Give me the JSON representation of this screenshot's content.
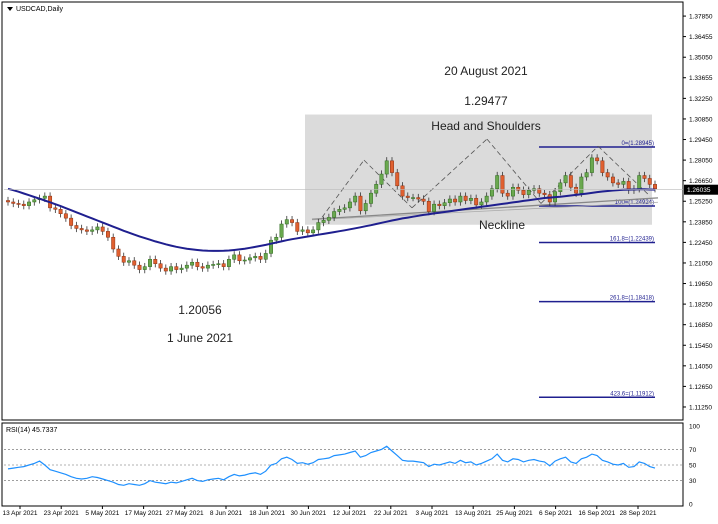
{
  "window": {
    "symbol_label": "USDCAD,Daily",
    "menu_icon": "triangle-down-icon"
  },
  "colors": {
    "background": "#ffffff",
    "frame": "#000000",
    "grid": "#c8c8c8",
    "candle_up": "#6aa84f",
    "candle_up_dark": "#2e6b1e",
    "candle_down": "#e06030",
    "wick": "#333333",
    "ma_line": "#1f1f8f",
    "neckline": "#888888",
    "pattern_box": "#d9d9d9",
    "dashed_pattern": "#555555",
    "fib_line": "#1f1f8f",
    "fib_text": "#1f1f8f",
    "rsi_line": "#1e90ff",
    "current_price_box": "#000000",
    "current_price_text": "#ffffff"
  },
  "annotations": {
    "high_date": "20 August 2021",
    "high_price": "1.29477",
    "pattern_label": "Head and Shoulders",
    "neckline_label": "Neckline",
    "low_price": "1.20056",
    "low_date": "1 June 2021"
  },
  "fib_levels": [
    {
      "label": "0=(1.28945)",
      "value": 1.28945
    },
    {
      "label": "100=(1.24924)",
      "value": 1.24924
    },
    {
      "label": "161.8=(1.22439)",
      "value": 1.22439
    },
    {
      "label": "261.8=(1.18418)",
      "value": 1.18418
    },
    {
      "label": "423.6=(1.11912)",
      "value": 1.11912
    }
  ],
  "current_price": "1.26035",
  "chart_data": [
    {
      "type": "candlestick",
      "title": "USDCAD,Daily",
      "x_tick_labels": [
        "13 Apr 2021",
        "23 Apr 2021",
        "5 May 2021",
        "17 May 2021",
        "27 May 2021",
        "8 Jun 2021",
        "18 Jun 2021",
        "30 Jun 2021",
        "12 Jul 2021",
        "22 Jul 2021",
        "3 Aug 2021",
        "13 Aug 2021",
        "25 Aug 2021",
        "6 Sep 2021",
        "16 Sep 2021",
        "28 Sep 2021"
      ],
      "y_tick_labels": [
        "1.37850",
        "1.36455",
        "1.35050",
        "1.33655",
        "1.32250",
        "1.30850",
        "1.29450",
        "1.28050",
        "1.26650",
        "1.25250",
        "1.23850",
        "1.22450",
        "1.21050",
        "1.19650",
        "1.18250",
        "1.16850",
        "1.15450",
        "1.14050",
        "1.12650",
        "1.11250"
      ],
      "ylim": [
        1.105,
        1.384
      ],
      "close": [
        1.252,
        1.251,
        1.2505,
        1.2495,
        1.252,
        1.2535,
        1.2545,
        1.256,
        1.248,
        1.247,
        1.244,
        1.241,
        1.236,
        1.234,
        1.233,
        1.232,
        1.233,
        1.235,
        1.232,
        1.228,
        1.22,
        1.215,
        1.211,
        1.212,
        1.209,
        1.206,
        1.208,
        1.213,
        1.21,
        1.207,
        1.205,
        1.208,
        1.206,
        1.207,
        1.209,
        1.211,
        1.208,
        1.207,
        1.209,
        1.2095,
        1.21,
        1.208,
        1.213,
        1.216,
        1.212,
        1.2125,
        1.214,
        1.215,
        1.213,
        1.217,
        1.226,
        1.228,
        1.237,
        1.24,
        1.238,
        1.232,
        1.233,
        1.231,
        1.233,
        1.238,
        1.2395,
        1.2415,
        1.2455,
        1.247,
        1.248,
        1.252,
        1.256,
        1.246,
        1.251,
        1.258,
        1.264,
        1.271,
        1.28,
        1.272,
        1.263,
        1.256,
        1.255,
        1.255,
        1.254,
        1.2525,
        1.2455,
        1.2505,
        1.2495,
        1.2515,
        1.254,
        1.252,
        1.256,
        1.253,
        1.2545,
        1.25,
        1.252,
        1.256,
        1.261,
        1.27,
        1.258,
        1.256,
        1.262,
        1.26,
        1.257,
        1.26,
        1.261,
        1.258,
        1.257,
        1.252,
        1.259,
        1.265,
        1.27,
        1.262,
        1.258,
        1.269,
        1.272,
        1.282,
        1.28,
        1.272,
        1.269,
        1.265,
        1.264,
        1.266,
        1.26,
        1.261,
        1.27,
        1.268,
        1.264,
        1.261
      ],
      "open": [
        1.253,
        1.252,
        1.251,
        1.2505,
        1.2495,
        1.252,
        1.2535,
        1.2545,
        1.256,
        1.248,
        1.247,
        1.244,
        1.241,
        1.236,
        1.234,
        1.233,
        1.232,
        1.233,
        1.235,
        1.232,
        1.228,
        1.22,
        1.215,
        1.211,
        1.212,
        1.209,
        1.206,
        1.208,
        1.213,
        1.21,
        1.207,
        1.205,
        1.208,
        1.206,
        1.207,
        1.209,
        1.211,
        1.208,
        1.207,
        1.209,
        1.2095,
        1.21,
        1.208,
        1.213,
        1.216,
        1.212,
        1.2125,
        1.214,
        1.215,
        1.213,
        1.217,
        1.226,
        1.228,
        1.237,
        1.24,
        1.238,
        1.232,
        1.233,
        1.231,
        1.233,
        1.238,
        1.2395,
        1.2415,
        1.2455,
        1.247,
        1.248,
        1.252,
        1.256,
        1.246,
        1.251,
        1.258,
        1.264,
        1.271,
        1.28,
        1.272,
        1.263,
        1.256,
        1.255,
        1.255,
        1.254,
        1.2525,
        1.2455,
        1.2505,
        1.2495,
        1.2515,
        1.254,
        1.252,
        1.256,
        1.253,
        1.2545,
        1.25,
        1.252,
        1.256,
        1.261,
        1.27,
        1.258,
        1.256,
        1.262,
        1.26,
        1.257,
        1.26,
        1.261,
        1.258,
        1.257,
        1.252,
        1.259,
        1.265,
        1.27,
        1.262,
        1.258,
        1.269,
        1.272,
        1.282,
        1.28,
        1.272,
        1.269,
        1.265,
        1.264,
        1.266,
        1.26,
        1.261,
        1.27,
        1.268,
        1.264
      ],
      "moving_average": [
        1.261,
        1.26,
        1.259,
        1.2578,
        1.2566,
        1.2554,
        1.2542,
        1.253,
        1.2518,
        1.2505,
        1.2492,
        1.2478,
        1.2464,
        1.245,
        1.2436,
        1.2422,
        1.2408,
        1.2394,
        1.238,
        1.2366,
        1.2352,
        1.2338,
        1.2324,
        1.2311,
        1.2298,
        1.2286,
        1.2274,
        1.2263,
        1.2252,
        1.2242,
        1.2232,
        1.2223,
        1.2215,
        1.2208,
        1.2202,
        1.2197,
        1.2193,
        1.219,
        1.2188,
        1.2187,
        1.2187,
        1.2188,
        1.219,
        1.2193,
        1.2197,
        1.2202,
        1.2208,
        1.2214,
        1.2221,
        1.2228,
        1.2236,
        1.2244,
        1.2252,
        1.226,
        1.2267,
        1.2273,
        1.2279,
        1.2285,
        1.2291,
        1.2297,
        1.2303,
        1.2309,
        1.2315,
        1.2321,
        1.2327,
        1.2334,
        1.2341,
        1.2348,
        1.2355,
        1.2362,
        1.237,
        1.2378,
        1.2386,
        1.2394,
        1.2401,
        1.2408,
        1.2414,
        1.242,
        1.2426,
        1.2432,
        1.2437,
        1.2442,
        1.2447,
        1.2452,
        1.2457,
        1.2462,
        1.2467,
        1.2472,
        1.2477,
        1.2482,
        1.2487,
        1.2492,
        1.2497,
        1.2502,
        1.2507,
        1.2512,
        1.2517,
        1.2522,
        1.2527,
        1.2532,
        1.2537,
        1.2542,
        1.2547,
        1.255,
        1.2553,
        1.2556,
        1.256,
        1.2564,
        1.2568,
        1.2572,
        1.2577,
        1.2582,
        1.2587,
        1.2591,
        1.2595,
        1.2598,
        1.2601,
        1.2603,
        1.2604,
        1.2605,
        1.2606,
        1.2606,
        1.2605,
        1.2604
      ]
    },
    {
      "type": "line",
      "title": "RSI(14) 45.7337",
      "y_tick_labels": [
        "100",
        "70",
        "50",
        "30",
        "0"
      ],
      "ylim": [
        0,
        100
      ],
      "levels": [
        70,
        50,
        30
      ],
      "values": [
        45,
        46,
        47,
        48,
        50,
        52,
        55,
        50,
        44,
        42,
        40,
        38,
        35,
        33,
        32,
        33,
        35,
        34,
        32,
        30,
        28,
        25,
        24,
        26,
        25,
        24,
        26,
        30,
        28,
        27,
        26,
        28,
        27,
        29,
        31,
        33,
        30,
        29,
        31,
        32,
        33,
        31,
        35,
        38,
        36,
        37,
        39,
        40,
        38,
        42,
        50,
        52,
        58,
        60,
        57,
        52,
        53,
        51,
        53,
        57,
        58,
        59,
        62,
        63,
        64,
        66,
        68,
        60,
        62,
        66,
        68,
        70,
        74,
        68,
        62,
        56,
        55,
        55,
        54,
        53,
        48,
        51,
        50,
        52,
        54,
        52,
        56,
        53,
        54,
        50,
        52,
        55,
        58,
        64,
        56,
        54,
        58,
        57,
        54,
        56,
        57,
        55,
        54,
        49,
        55,
        58,
        60,
        54,
        52,
        58,
        60,
        64,
        62,
        56,
        54,
        51,
        50,
        52,
        47,
        48,
        54,
        52,
        48,
        46
      ]
    }
  ]
}
